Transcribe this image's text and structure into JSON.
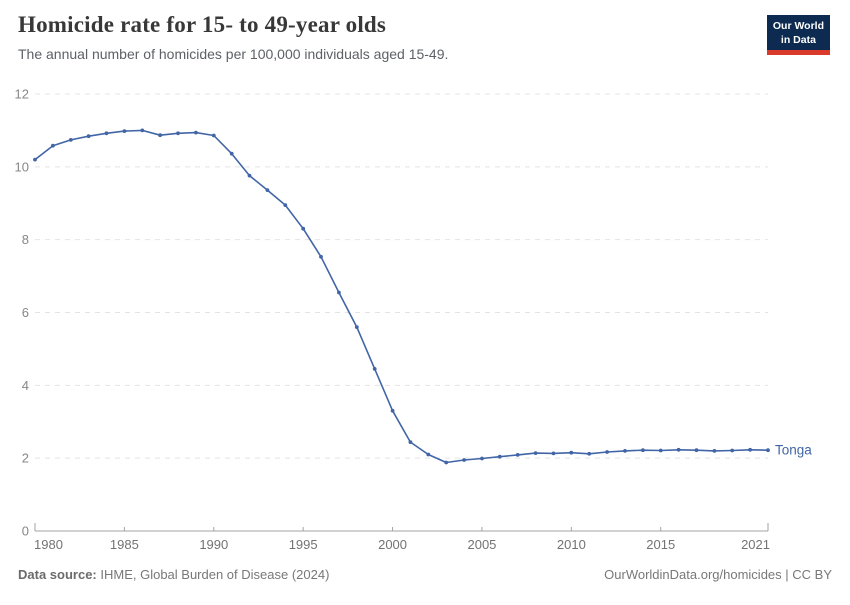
{
  "header": {
    "title": "Homicide rate for 15- to 49-year olds",
    "subtitle": "The annual number of homicides per 100,000 individuals aged 15-49.",
    "logo": {
      "line1": "Our World",
      "line2": "in Data"
    }
  },
  "chart_data": {
    "type": "line",
    "title": "Homicide rate for 15- to 49-year olds",
    "xlabel": "",
    "ylabel": "",
    "ylim": [
      0,
      12
    ],
    "yticks": [
      0,
      2,
      4,
      6,
      8,
      10,
      12
    ],
    "xticks": [
      1980,
      1985,
      1990,
      1995,
      2000,
      2005,
      2010,
      2015,
      2021
    ],
    "grid": "horizontal-dashed",
    "legend_position": "end-of-line-label",
    "x": [
      1980,
      1981,
      1982,
      1983,
      1984,
      1985,
      1986,
      1987,
      1988,
      1989,
      1990,
      1991,
      1992,
      1993,
      1994,
      1995,
      1996,
      1997,
      1998,
      1999,
      2000,
      2001,
      2002,
      2003,
      2004,
      2005,
      2006,
      2007,
      2008,
      2009,
      2010,
      2011,
      2012,
      2013,
      2014,
      2015,
      2016,
      2017,
      2018,
      2019,
      2020,
      2021
    ],
    "series": [
      {
        "name": "Tonga",
        "color": "#4165a6",
        "values": [
          10.2,
          10.58,
          10.74,
          10.84,
          10.92,
          10.98,
          11.0,
          10.87,
          10.92,
          10.94,
          10.86,
          10.36,
          9.76,
          9.36,
          8.95,
          8.3,
          7.53,
          6.55,
          5.6,
          4.45,
          3.3,
          2.44,
          2.1,
          1.88,
          1.95,
          1.99,
          2.04,
          2.09,
          2.14,
          2.13,
          2.15,
          2.12,
          2.17,
          2.2,
          2.22,
          2.21,
          2.23,
          2.22,
          2.2,
          2.21,
          2.23,
          2.22
        ]
      }
    ]
  },
  "footer": {
    "source_label": "Data source:",
    "source_text": " IHME, Global Burden of Disease (2024)",
    "link_text": "OurWorldinData.org/homicides | CC BY"
  },
  "colors": {
    "accent_line": "#4165a6",
    "grid": "#e4e4e4",
    "axis": "#a3a3a3",
    "y_tick_label": "#878787",
    "x_tick_label": "#737373",
    "logo_bg": "#0d2b50",
    "logo_bar": "#d93a2a"
  }
}
